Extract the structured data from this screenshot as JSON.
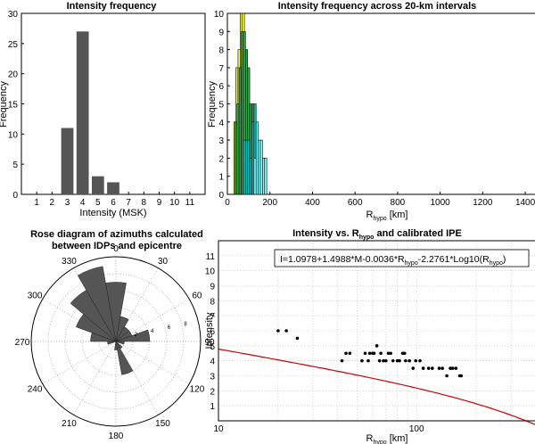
{
  "chart_data": [
    {
      "id": "hist_intensity",
      "type": "bar",
      "title": "Intensity frequency",
      "xlabel": "Intensity (MSK)",
      "ylabel": "Frequency",
      "xlim": [
        0,
        12
      ],
      "ylim": [
        0,
        30
      ],
      "xticks": [
        1,
        2,
        3,
        4,
        5,
        6,
        7,
        8,
        9,
        10,
        11
      ],
      "yticks": [
        0,
        5,
        10,
        15,
        20,
        25,
        30
      ],
      "bar_color": "#555555",
      "categories": [
        3,
        4,
        5,
        6
      ],
      "values": [
        11,
        27,
        3,
        2
      ]
    },
    {
      "id": "hist_distance",
      "type": "bar",
      "title": "Intensity frequency across 20-km intervals",
      "xlabel_main": "R",
      "xlabel_sub": "hypo",
      "xlabel_unit": " [km]",
      "ylabel": "Frequency",
      "xlim": [
        0,
        1450
      ],
      "ylim": [
        0,
        10
      ],
      "xticks": [
        0,
        200,
        400,
        600,
        800,
        1000,
        1200,
        1400
      ],
      "yticks": [
        0,
        1,
        2,
        3,
        4,
        5,
        6,
        7,
        8,
        9,
        10
      ],
      "bin_width": 10,
      "series": [
        {
          "color": "#ffff00",
          "bars": [
            [
              35,
              4
            ],
            [
              45,
              7
            ],
            [
              55,
              8
            ],
            [
              65,
              10
            ],
            [
              75,
              10
            ]
          ]
        },
        {
          "color": "#2ea84a",
          "bars": [
            [
              40,
              4
            ],
            [
              50,
              5
            ],
            [
              60,
              7
            ],
            [
              70,
              9
            ],
            [
              80,
              9
            ],
            [
              90,
              8
            ],
            [
              100,
              7
            ],
            [
              110,
              5
            ],
            [
              120,
              5
            ]
          ]
        },
        {
          "color": "#00bfbf",
          "bars": [
            [
              80,
              3
            ],
            [
              90,
              3
            ],
            [
              100,
              3
            ],
            [
              110,
              2
            ],
            [
              120,
              4
            ],
            [
              130,
              5
            ],
            [
              140,
              3
            ]
          ]
        },
        {
          "color": "#80ffff",
          "bars": [
            [
              130,
              2
            ],
            [
              140,
              4
            ],
            [
              150,
              3
            ],
            [
              160,
              3
            ],
            [
              170,
              2
            ],
            [
              180,
              2
            ]
          ]
        }
      ]
    },
    {
      "id": "rose",
      "type": "rose",
      "title_line1": "Rose diagram of azimuths calculated",
      "title_line2": "between  IDPs and epicentre",
      "rmax": 10,
      "ring_labels": [
        2,
        4,
        6,
        8
      ],
      "angle_labels": [
        0,
        30,
        60,
        90,
        120,
        150,
        180,
        210,
        240,
        270,
        300,
        330
      ],
      "bin_deg": 20,
      "fill": "#555555",
      "sectors": [
        [
          0,
          7
        ],
        [
          20,
          3
        ],
        [
          40,
          2
        ],
        [
          60,
          2
        ],
        [
          80,
          4
        ],
        [
          100,
          1
        ],
        [
          120,
          0
        ],
        [
          140,
          1
        ],
        [
          160,
          4
        ],
        [
          180,
          1
        ],
        [
          200,
          0
        ],
        [
          220,
          0
        ],
        [
          240,
          0
        ],
        [
          260,
          1
        ],
        [
          280,
          3
        ],
        [
          300,
          5
        ],
        [
          320,
          7
        ],
        [
          340,
          9
        ]
      ]
    },
    {
      "id": "ipe",
      "type": "scatter",
      "title_prefix": "Intensity vs. R",
      "title_sub": "hypo",
      "title_suffix": " and calibrated IPE",
      "xlabel_main": "R",
      "xlabel_sub": "hypo",
      "xlabel_unit": " [km]",
      "ylabel": "Intensity",
      "xscale": "log",
      "xlim": [
        10,
        400
      ],
      "ylim": [
        0,
        12
      ],
      "xticks": [
        10,
        100
      ],
      "yticks": [
        1,
        2,
        3,
        4,
        5,
        6,
        7,
        8,
        9,
        10,
        11
      ],
      "curve_color": "#cc0000",
      "curve_M": 4.0,
      "equation": {
        "part1": "I=1.0978+1.4988*M-0.0036*R",
        "sub1": "hypo",
        "part2": "-2.2761*Log10(R",
        "sub2": "hypo",
        "part3": ")"
      },
      "points": [
        [
          20,
          6
        ],
        [
          22,
          6
        ],
        [
          25,
          5.5
        ],
        [
          42,
          4
        ],
        [
          44,
          4.5
        ],
        [
          46,
          4.5
        ],
        [
          53,
          4
        ],
        [
          55,
          4.5
        ],
        [
          57,
          4
        ],
        [
          58,
          4.5
        ],
        [
          60,
          4.5
        ],
        [
          61,
          4.5
        ],
        [
          63,
          5
        ],
        [
          65,
          4
        ],
        [
          66,
          4.5
        ],
        [
          68,
          4
        ],
        [
          70,
          4
        ],
        [
          72,
          4.5
        ],
        [
          74,
          4.5
        ],
        [
          76,
          4
        ],
        [
          80,
          4
        ],
        [
          82,
          4
        ],
        [
          85,
          4.5
        ],
        [
          87,
          4.5
        ],
        [
          88,
          4
        ],
        [
          92,
          4
        ],
        [
          96,
          3.5
        ],
        [
          99,
          4
        ],
        [
          104,
          4
        ],
        [
          108,
          3.5
        ],
        [
          115,
          3.5
        ],
        [
          120,
          3.5
        ],
        [
          130,
          3.5
        ],
        [
          135,
          3.5
        ],
        [
          142,
          3
        ],
        [
          148,
          3.5
        ],
        [
          152,
          3.5
        ],
        [
          158,
          3.5
        ],
        [
          165,
          3
        ],
        [
          168,
          3
        ]
      ]
    }
  ]
}
